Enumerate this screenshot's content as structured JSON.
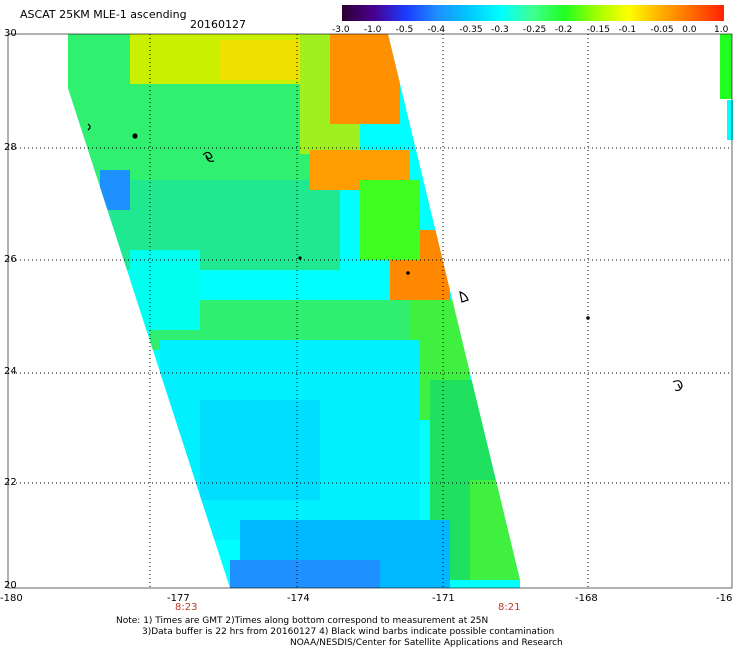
{
  "header": {
    "title": "ASCAT 25KM MLE-1 ascending",
    "date": "20160127"
  },
  "colorbar": {
    "labels": [
      "-3.0",
      "-1.0",
      "-0.5",
      "-0.4",
      "-0.35",
      "-0.3",
      "-0.25",
      "-0.2",
      "-0.15",
      "-0.1",
      "-0.05",
      "0.0",
      "1.0"
    ],
    "colors": [
      "#2b0030",
      "#4a0090",
      "#1a3aff",
      "#1e90ff",
      "#00c8ff",
      "#00ffff",
      "#40ff90",
      "#20ff20",
      "#a0ff00",
      "#ffff00",
      "#ffb000",
      "#ff6a00",
      "#ff2000"
    ]
  },
  "axes": {
    "lon_labels": [
      "-180",
      "-177",
      "-174",
      "-171",
      "-168",
      "-16"
    ],
    "lat_labels": [
      "30",
      "28",
      "26",
      "24",
      "22",
      "20"
    ]
  },
  "times": [
    "8:23",
    "8:21"
  ],
  "notes": [
    "Note: 1) Times are GMT 2)Times along bottom correspond to measurement at 25N",
    "3)Data buffer is 22 hrs from 20160127 4) Black wind barbs indicate possible contamination",
    "NOAA/NESDIS/Center for Satellite Applications and Research"
  ]
}
